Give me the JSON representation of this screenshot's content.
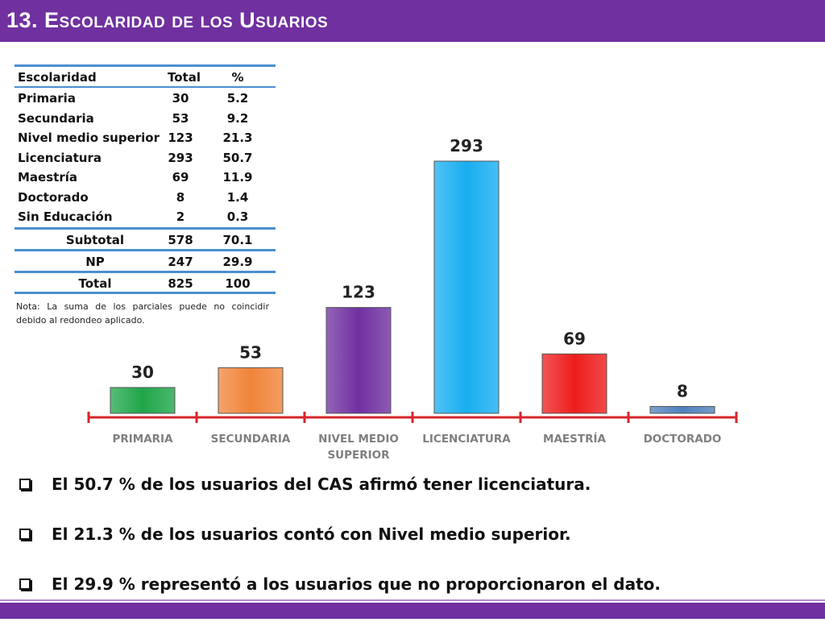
{
  "title": "13. Escolaridad de los Usuarios",
  "table": {
    "headers": [
      "Escolaridad",
      "Total",
      "%"
    ],
    "rows": [
      [
        "Primaria",
        "30",
        "5.2"
      ],
      [
        "Secundaria",
        "53",
        "9.2"
      ],
      [
        "Nivel medio superior",
        "123",
        "21.3"
      ],
      [
        "Licenciatura",
        "293",
        "50.7"
      ],
      [
        "Maestría",
        "69",
        "11.9"
      ],
      [
        "Doctorado",
        "8",
        "1.4"
      ],
      [
        "Sin Educación",
        "2",
        "0.3"
      ]
    ],
    "subtotal": [
      "Subtotal",
      "578",
      "70.1"
    ],
    "np": [
      "NP",
      "247",
      "29.9"
    ],
    "total": [
      "Total",
      "825",
      "100"
    ],
    "note": "Nota: La suma de los parciales puede no coincidir debido al redondeo aplicado."
  },
  "chart_data": {
    "type": "bar",
    "categories": [
      "PRIMARIA",
      "SECUNDARIA",
      "NIVEL MEDIO SUPERIOR",
      "LICENCIATURA",
      "MAESTRÍA",
      "DOCTORADO"
    ],
    "category_lines": [
      [
        "PRIMARIA"
      ],
      [
        "SECUNDARIA"
      ],
      [
        "NIVEL MEDIO",
        "SUPERIOR"
      ],
      [
        "LICENCIATURA"
      ],
      [
        "MAESTRÍA"
      ],
      [
        "DOCTORADO"
      ]
    ],
    "values": [
      30,
      53,
      123,
      293,
      69,
      8
    ],
    "colors": [
      "#1fa64a",
      "#f0843a",
      "#7030a0",
      "#18aef0",
      "#ee1c1c",
      "#4f81bd"
    ],
    "axis_color": "#d7262b",
    "label_color": "#7f7f7f",
    "title": "",
    "xlabel": "",
    "ylabel": ""
  },
  "bullets": [
    "El 50.7 % de los usuarios del CAS afirmó tener licenciatura.",
    "El 21.3 % de los usuarios contó con Nivel medio superior.",
    "El 29.9 % representó a los usuarios que no proporcionaron el dato."
  ]
}
